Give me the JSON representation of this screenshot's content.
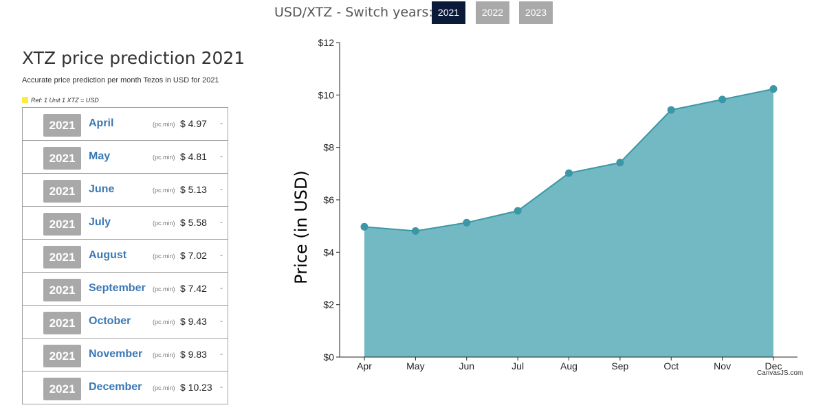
{
  "switcher": {
    "label": "USD/XTZ - Switch years:",
    "years": [
      {
        "label": "2021",
        "active": true
      },
      {
        "label": "2022",
        "active": false
      },
      {
        "label": "2023",
        "active": false
      }
    ]
  },
  "left": {
    "title": "XTZ price prediction 2021",
    "subtitle": "Accurate price prediction per month Tezos in USD for 2021",
    "ref": "Ref: 1 Unit 1 XTZ = USD",
    "rows": [
      {
        "year": "2021",
        "month": "April",
        "unit": "(pc.min)",
        "price": "$ 4.97",
        "extra": "-"
      },
      {
        "year": "2021",
        "month": "May",
        "unit": "(pc.min)",
        "price": "$ 4.81",
        "extra": "-"
      },
      {
        "year": "2021",
        "month": "June",
        "unit": "(pc.min)",
        "price": "$ 5.13",
        "extra": "-"
      },
      {
        "year": "2021",
        "month": "July",
        "unit": "(pc.min)",
        "price": "$ 5.58",
        "extra": "-"
      },
      {
        "year": "2021",
        "month": "August",
        "unit": "(pc.min)",
        "price": "$ 7.02",
        "extra": "-"
      },
      {
        "year": "2021",
        "month": "September",
        "unit": "(pc.min)",
        "price": "$ 7.42",
        "extra": "-"
      },
      {
        "year": "2021",
        "month": "October",
        "unit": "(pc.min)",
        "price": "$ 9.43",
        "extra": "-"
      },
      {
        "year": "2021",
        "month": "November",
        "unit": "(pc.min)",
        "price": "$ 9.83",
        "extra": "-"
      },
      {
        "year": "2021",
        "month": "December",
        "unit": "(pc.min)",
        "price": "$ 10.23",
        "extra": "-"
      }
    ]
  },
  "chart_data": {
    "type": "area",
    "categories": [
      "Apr",
      "May",
      "Jun",
      "Jul",
      "Aug",
      "Sep",
      "Oct",
      "Nov",
      "Dec"
    ],
    "values": [
      4.97,
      4.81,
      5.13,
      5.58,
      7.02,
      7.42,
      9.43,
      9.83,
      10.23
    ],
    "ylabel": "Price (in USD)",
    "ylim": [
      0,
      12
    ],
    "yticks": [
      0,
      2,
      4,
      6,
      8,
      10,
      12
    ],
    "ytick_labels": [
      "$0",
      "$2",
      "$4",
      "$6",
      "$8",
      "$10",
      "$12"
    ],
    "grid": false,
    "fill_color": "#72b9c3",
    "line_color": "#3a97a5",
    "marker_color": "#3a97a5"
  },
  "credit": "CanvasJS.com"
}
